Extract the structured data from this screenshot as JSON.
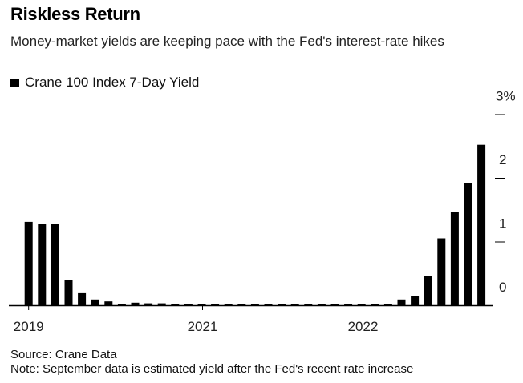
{
  "header": {
    "title": "Riskless Return",
    "subtitle": "Money-market yields are keeping pace with the Fed's interest-rate hikes"
  },
  "legend": {
    "label": "Crane 100 Index 7-Day Yield",
    "icon": "square-icon",
    "color": "#000000"
  },
  "footer": {
    "source": "Source: Crane Data",
    "note": "Note: September data is estimated yield after the Fed's recent rate increase"
  },
  "chart_data": {
    "type": "bar",
    "title": "Riskless Return",
    "series": [
      {
        "name": "Crane 100 Index 7-Day Yield",
        "color": "#000000",
        "values": [
          1.31,
          1.28,
          1.27,
          0.39,
          0.19,
          0.09,
          0.06,
          0.02,
          0.04,
          0.03,
          0.03,
          0.02,
          0.02,
          0.02,
          0.02,
          0.02,
          0.02,
          0.02,
          0.02,
          0.02,
          0.02,
          0.02,
          0.02,
          0.02,
          0.02,
          0.02,
          0.02,
          0.02,
          0.09,
          0.14,
          0.46,
          1.05,
          1.47,
          1.92,
          2.52
        ]
      }
    ],
    "x_ticks": [
      "2019",
      "2021",
      "2022"
    ],
    "y_ticks": [
      "0",
      "1",
      "2",
      "3%"
    ],
    "ylim": [
      0,
      3
    ],
    "xlabel": "",
    "ylabel": "",
    "grid": false,
    "legend_position": "top-left"
  }
}
